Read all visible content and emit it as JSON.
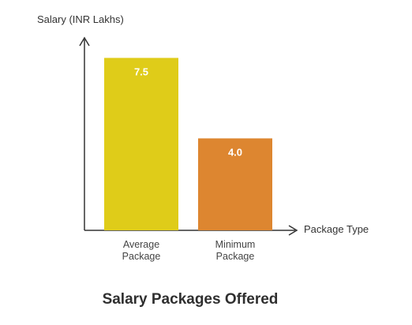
{
  "chart_data": {
    "type": "bar",
    "title": "Salary Packages Offered",
    "ylabel": "Salary (INR Lakhs)",
    "xlabel": "Package Type",
    "categories": [
      "Average\nPackage",
      "Minimum\nPackage"
    ],
    "values": [
      7.5,
      4.0
    ],
    "value_labels": [
      "7.5",
      "4.0"
    ],
    "colors": [
      "#dfcc19",
      "#dd8630"
    ],
    "ylim": [
      0,
      8.2
    ],
    "grid": false
  }
}
